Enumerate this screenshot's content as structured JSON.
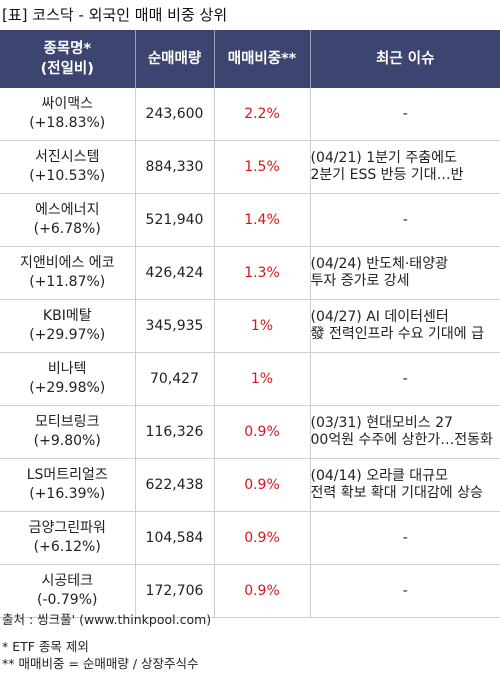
{
  "title": "[표] 코스닥 - 외국인 매매 비중 상위",
  "table": {
    "headers": [
      {
        "line1": "종목명*",
        "line2": "(전일비)"
      },
      {
        "line1": "순매매량",
        "line2": ""
      },
      {
        "line1": "매매비중**",
        "line2": ""
      },
      {
        "line1": "최근 이슈",
        "line2": ""
      }
    ],
    "rows": [
      {
        "name": "싸이맥스",
        "change": "(+18.83%)",
        "volume": "243,600",
        "ratio": "2.2%",
        "issue": [
          "-"
        ]
      },
      {
        "name": "서진시스템",
        "change": "(+10.53%)",
        "volume": "884,330",
        "ratio": "1.5%",
        "issue": [
          "(04/21) 1분기 주춤에도",
          " 2분기 ESS 반등 기대…반"
        ]
      },
      {
        "name": "에스에너지",
        "change": "(+6.78%)",
        "volume": "521,940",
        "ratio": "1.4%",
        "issue": [
          "-"
        ]
      },
      {
        "name": "지앤비에스 에코",
        "change": "(+11.87%)",
        "volume": "426,424",
        "ratio": "1.3%",
        "issue": [
          "(04/24) 반도체·태양광",
          "투자 증가로 강세"
        ]
      },
      {
        "name": "KBI메탈",
        "change": "(+29.97%)",
        "volume": "345,935",
        "ratio": "1%",
        "issue": [
          "(04/27) AI 데이터센터",
          "發 전력인프라 수요 기대에 급"
        ]
      },
      {
        "name": "비나텍",
        "change": "(+29.98%)",
        "volume": "70,427",
        "ratio": "1%",
        "issue": [
          "-"
        ]
      },
      {
        "name": "모티브링크",
        "change": "(+9.80%)",
        "volume": "116,326",
        "ratio": "0.9%",
        "issue": [
          "(03/31) 현대모비스 27",
          "00억원 수주에 상한가…전동화"
        ]
      },
      {
        "name": "LS머트리얼즈",
        "change": "(+16.39%)",
        "volume": "622,438",
        "ratio": "0.9%",
        "issue": [
          "(04/14) 오라클 대규모",
          "전력 확보 확대 기대감에 상승"
        ]
      },
      {
        "name": "금양그린파워",
        "change": "(+6.12%)",
        "volume": "104,584",
        "ratio": "0.9%",
        "issue": [
          "-"
        ]
      },
      {
        "name": "시공테크",
        "change": "(-0.79%)",
        "volume": "172,706",
        "ratio": "0.9%",
        "issue": [
          "-"
        ]
      }
    ]
  },
  "footer": {
    "source": "출처 : 씽크풀' (www.thinkpool.com)",
    "note1": "* ETF 종목 제외",
    "note2": "** 매매비중 = 순매매량 / 상장주식수"
  },
  "colors": {
    "header_bg": "#3c4470",
    "ratio_text": "#d8151b"
  }
}
